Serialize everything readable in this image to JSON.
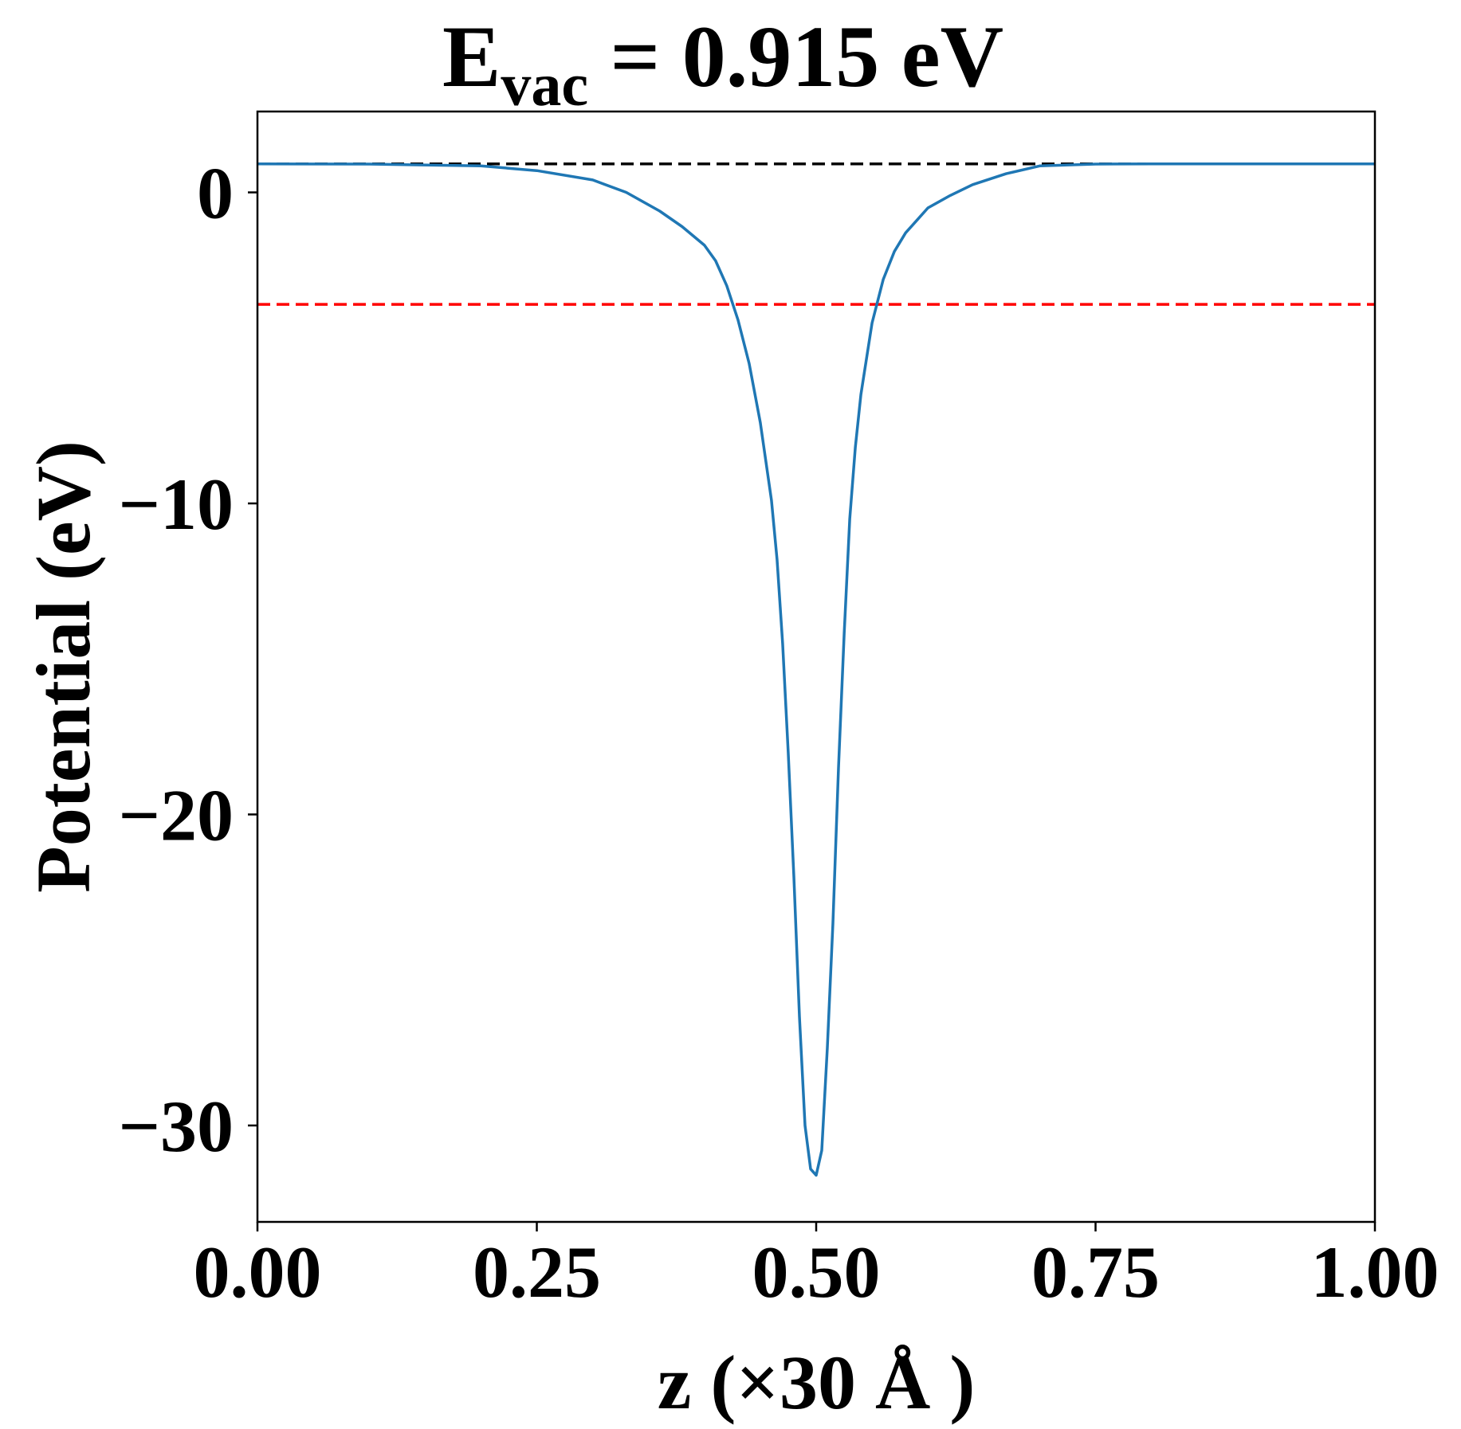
{
  "chart_data": {
    "type": "line",
    "title": {
      "main": "E",
      "sub": "vac",
      "rest": " = 0.915 eV"
    },
    "xlabel": "z (×30 Å )",
    "ylabel": "Potential (eV)",
    "xlim": [
      0,
      1
    ],
    "ylim": [
      -33.1,
      2.6
    ],
    "x_ticks": [
      0,
      0.25,
      0.5,
      0.75,
      1.0
    ],
    "x_tick_labels": [
      "0.00",
      "0.25",
      "0.50",
      "0.75",
      "1.00"
    ],
    "y_ticks": [
      0,
      -10,
      -20,
      -30
    ],
    "y_tick_labels": [
      "0",
      "−10",
      "−20",
      "−30"
    ],
    "grid": false,
    "reference_lines": [
      {
        "y": 0.915,
        "color": "#000000",
        "style": "dashed"
      },
      {
        "y": -3.6,
        "color": "#ff0000",
        "style": "dashed"
      }
    ],
    "series": [
      {
        "color": "#1f77b4",
        "x": [
          0.0,
          0.1,
          0.2,
          0.25,
          0.3,
          0.33,
          0.36,
          0.38,
          0.4,
          0.41,
          0.42,
          0.43,
          0.44,
          0.45,
          0.46,
          0.465,
          0.47,
          0.475,
          0.48,
          0.485,
          0.49,
          0.495,
          0.5,
          0.505,
          0.51,
          0.515,
          0.52,
          0.525,
          0.53,
          0.535,
          0.54,
          0.55,
          0.56,
          0.57,
          0.58,
          0.59,
          0.6,
          0.62,
          0.64,
          0.67,
          0.7,
          0.75,
          0.8,
          0.9,
          1.0
        ],
        "y": [
          0.915,
          0.91,
          0.85,
          0.7,
          0.4,
          0.0,
          -0.6,
          -1.1,
          -1.7,
          -2.2,
          -3.0,
          -4.1,
          -5.5,
          -7.4,
          -9.9,
          -11.8,
          -14.5,
          -18.0,
          -22.0,
          -26.5,
          -30.0,
          -31.4,
          -31.6,
          -30.8,
          -27.5,
          -23.5,
          -18.5,
          -14.2,
          -10.5,
          -8.2,
          -6.5,
          -4.2,
          -2.8,
          -1.9,
          -1.3,
          -0.9,
          -0.5,
          -0.1,
          0.25,
          0.6,
          0.85,
          0.91,
          0.915,
          0.915,
          0.915
        ]
      }
    ]
  }
}
